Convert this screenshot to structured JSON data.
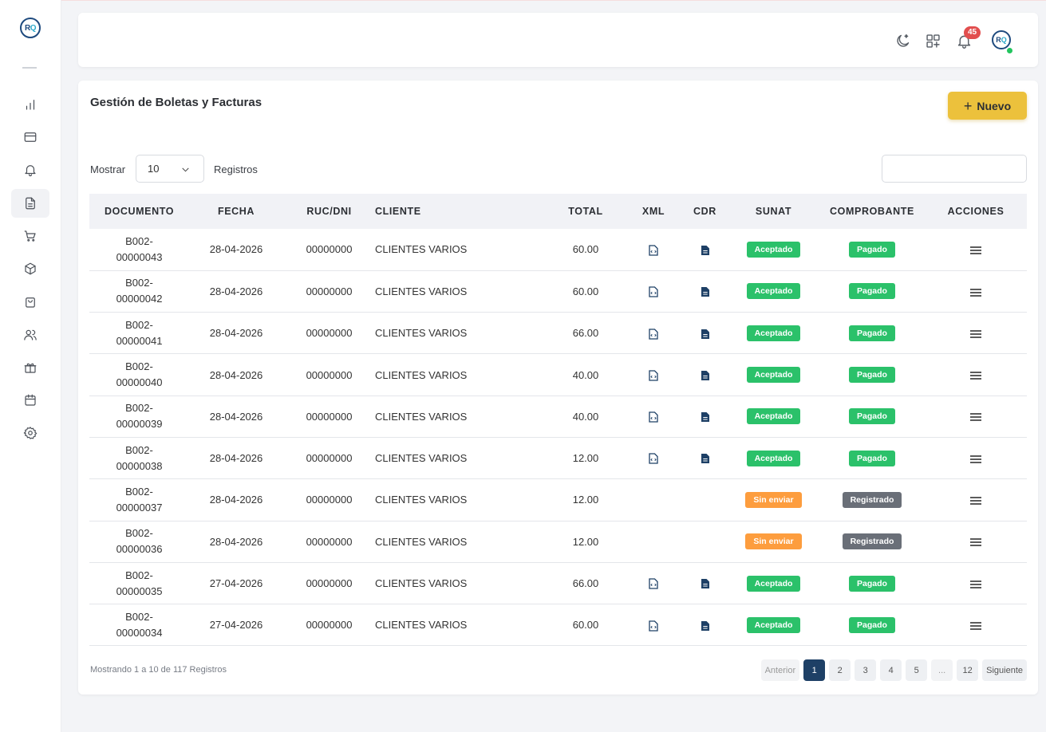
{
  "app": {
    "logo_text_r": "R",
    "logo_text_q": "Q"
  },
  "colors": {
    "accent": "#ecc13c",
    "primary": "#1e4066",
    "success": "#2bc16a",
    "warning": "#fd9d3e",
    "neutral": "#6a6f78",
    "danger": "#e24e4e"
  },
  "sidebar": {
    "items": [
      {
        "name": "dashboard",
        "icon": "bar-chart-icon"
      },
      {
        "name": "payments",
        "icon": "credit-card-icon"
      },
      {
        "name": "notifications",
        "icon": "bell-icon"
      },
      {
        "name": "documents",
        "icon": "document-icon",
        "active": true
      },
      {
        "name": "sales",
        "icon": "cart-icon"
      },
      {
        "name": "products",
        "icon": "box-icon"
      },
      {
        "name": "orders",
        "icon": "bag-icon"
      },
      {
        "name": "users",
        "icon": "users-icon"
      },
      {
        "name": "promotions",
        "icon": "gift-icon"
      },
      {
        "name": "calendar",
        "icon": "calendar-icon"
      },
      {
        "name": "settings",
        "icon": "gear-icon"
      }
    ]
  },
  "header": {
    "notification_count": "45",
    "avatar_r": "R",
    "avatar_q": "Q"
  },
  "main": {
    "title": "Gestión de Boletas y Facturas",
    "new_button": "Nuevo",
    "show_label": "Mostrar",
    "page_size": "10",
    "records_label": "Registros",
    "search_value": ""
  },
  "table": {
    "columns": [
      "DOCUMENTO",
      "FECHA",
      "RUC/DNI",
      "CLIENTE",
      "TOTAL",
      "XML",
      "CDR",
      "SUNAT",
      "COMPROBANTE",
      "ACCIONES"
    ],
    "rows": [
      {
        "doc_series": "B002-",
        "doc_number": "00000043",
        "fecha": "28-04-2026",
        "ruc": "00000000",
        "cliente": "CLIENTES VARIOS",
        "total": "60.00",
        "has_files": true,
        "sunat": "Aceptado",
        "comprobante": "Pagado"
      },
      {
        "doc_series": "B002-",
        "doc_number": "00000042",
        "fecha": "28-04-2026",
        "ruc": "00000000",
        "cliente": "CLIENTES VARIOS",
        "total": "60.00",
        "has_files": true,
        "sunat": "Aceptado",
        "comprobante": "Pagado"
      },
      {
        "doc_series": "B002-",
        "doc_number": "00000041",
        "fecha": "28-04-2026",
        "ruc": "00000000",
        "cliente": "CLIENTES VARIOS",
        "total": "66.00",
        "has_files": true,
        "sunat": "Aceptado",
        "comprobante": "Pagado"
      },
      {
        "doc_series": "B002-",
        "doc_number": "00000040",
        "fecha": "28-04-2026",
        "ruc": "00000000",
        "cliente": "CLIENTES VARIOS",
        "total": "40.00",
        "has_files": true,
        "sunat": "Aceptado",
        "comprobante": "Pagado"
      },
      {
        "doc_series": "B002-",
        "doc_number": "00000039",
        "fecha": "28-04-2026",
        "ruc": "00000000",
        "cliente": "CLIENTES VARIOS",
        "total": "40.00",
        "has_files": true,
        "sunat": "Aceptado",
        "comprobante": "Pagado"
      },
      {
        "doc_series": "B002-",
        "doc_number": "00000038",
        "fecha": "28-04-2026",
        "ruc": "00000000",
        "cliente": "CLIENTES VARIOS",
        "total": "12.00",
        "has_files": true,
        "sunat": "Aceptado",
        "comprobante": "Pagado"
      },
      {
        "doc_series": "B002-",
        "doc_number": "00000037",
        "fecha": "28-04-2026",
        "ruc": "00000000",
        "cliente": "CLIENTES VARIOS",
        "total": "12.00",
        "has_files": false,
        "sunat": "Sin enviar",
        "comprobante": "Registrado"
      },
      {
        "doc_series": "B002-",
        "doc_number": "00000036",
        "fecha": "28-04-2026",
        "ruc": "00000000",
        "cliente": "CLIENTES VARIOS",
        "total": "12.00",
        "has_files": false,
        "sunat": "Sin enviar",
        "comprobante": "Registrado"
      },
      {
        "doc_series": "B002-",
        "doc_number": "00000035",
        "fecha": "27-04-2026",
        "ruc": "00000000",
        "cliente": "CLIENTES VARIOS",
        "total": "66.00",
        "has_files": true,
        "sunat": "Aceptado",
        "comprobante": "Pagado"
      },
      {
        "doc_series": "B002-",
        "doc_number": "00000034",
        "fecha": "27-04-2026",
        "ruc": "00000000",
        "cliente": "CLIENTES VARIOS",
        "total": "60.00",
        "has_files": true,
        "sunat": "Aceptado",
        "comprobante": "Pagado"
      }
    ]
  },
  "footer": {
    "info": "Mostrando 1 a 10 de 117 Registros",
    "pages": [
      "Anterior",
      "1",
      "2",
      "3",
      "4",
      "5",
      "...",
      "12",
      "Siguiente"
    ],
    "active_page": "1"
  }
}
